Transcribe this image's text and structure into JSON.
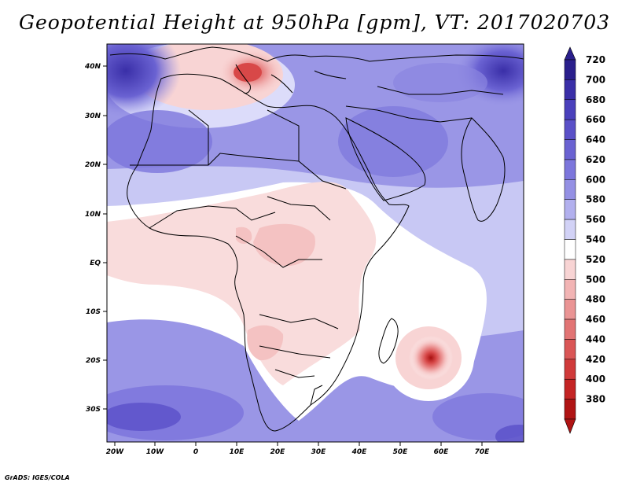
{
  "title": "Geopotential Height at 950hPa [gpm], VT: 2017020703",
  "credit": "GrADS: IGES/COLA",
  "map": {
    "lat_labels": [
      "40N",
      "30N",
      "20N",
      "10N",
      "EQ",
      "10S",
      "20S",
      "30S"
    ],
    "lon_labels": [
      "20W",
      "10W",
      "0",
      "10E",
      "20E",
      "30E",
      "40E",
      "50E",
      "60E",
      "70E"
    ]
  },
  "colorbar": {
    "levels": [
      "720",
      "700",
      "680",
      "660",
      "640",
      "620",
      "600",
      "580",
      "560",
      "540",
      "520",
      "500",
      "480",
      "460",
      "440",
      "420",
      "400",
      "380"
    ],
    "colors": [
      "#2a1f8c",
      "#3a2fa8",
      "#4a40bc",
      "#5a50c8",
      "#6a62d2",
      "#7c76dc",
      "#9490e4",
      "#b2b0ee",
      "#d2d2f6",
      "#ffffff",
      "#f8d4d4",
      "#f2b4b4",
      "#ea9494",
      "#e27474",
      "#da5656",
      "#d03a3a",
      "#c42424",
      "#b01414"
    ]
  }
}
